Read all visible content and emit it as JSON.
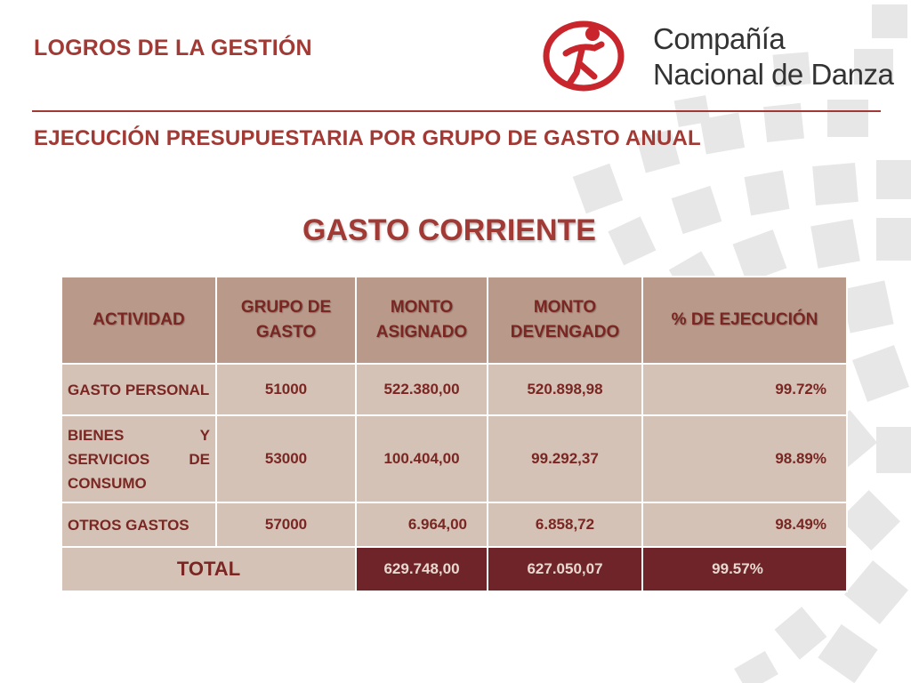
{
  "header": {
    "section_title": "LOGROS DE LA GESTIÓN",
    "subtitle": "EJECUCIÓN PRESUPUESTARIA POR GRUPO DE GASTO ANUAL",
    "main_title": "GASTO CORRIENTE"
  },
  "logo": {
    "line1": "Compañía",
    "line2": "Nacional de Danza",
    "brand_color": "#c8262c"
  },
  "table": {
    "headers": {
      "actividad": "ACTIVIDAD",
      "grupo": "GRUPO DE GASTO",
      "asignado": "MONTO ASIGNADO",
      "devengado": "MONTO DEVENGADO",
      "ejecucion": "% DE EJECUCIÓN"
    },
    "rows": [
      {
        "actividad": "GASTO PERSONAL",
        "grupo": "51000",
        "asignado": "522.380,00",
        "devengado": "520.898,98",
        "ejecucion": "99.72%"
      },
      {
        "actividad": "BIENES Y SERVICIOS DE CONSUMO",
        "grupo": "53000",
        "asignado": "100.404,00",
        "devengado": "99.292,37",
        "ejecucion": "98.89%"
      },
      {
        "actividad": "OTROS GASTOS",
        "grupo": "57000",
        "asignado": "6.964,00",
        "devengado": "6.858,72",
        "ejecucion": "98.49%"
      }
    ],
    "total": {
      "label": "TOTAL",
      "asignado": "629.748,00",
      "devengado": "627.050,07",
      "ejecucion": "99.57%"
    }
  },
  "colors": {
    "accent": "#a13a35",
    "header_fill": "#b9998a",
    "row_fill": "#d5c2b6",
    "total_fill": "#6e2428"
  }
}
